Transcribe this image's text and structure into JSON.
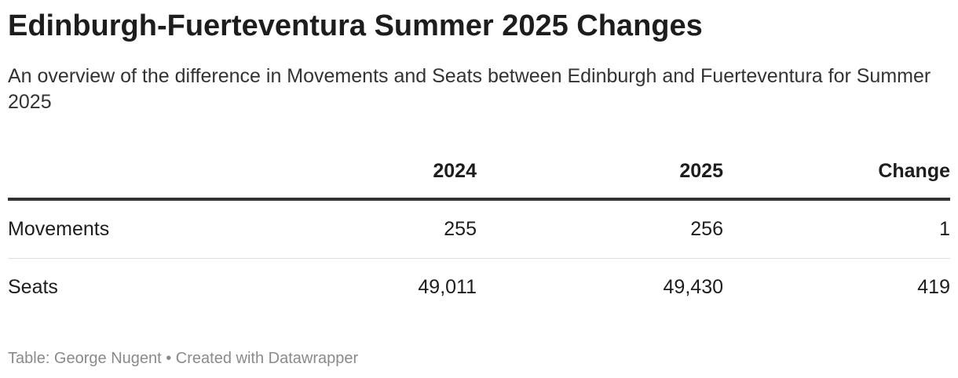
{
  "header": {
    "title": "Edinburgh-Fuerteventura Summer 2025 Changes",
    "subtitle": "An overview of the difference in Movements and Seats between Edinburgh and Fuerteventura for Summer 2025"
  },
  "table": {
    "columns": [
      "",
      "2024",
      "2025",
      "Change"
    ],
    "rows": [
      [
        "Movements",
        "255",
        "256",
        "1"
      ],
      [
        "Seats",
        "49,011",
        "49,430",
        "419"
      ]
    ]
  },
  "footer": {
    "text": "Table: George Nugent • Created with Datawrapper"
  }
}
